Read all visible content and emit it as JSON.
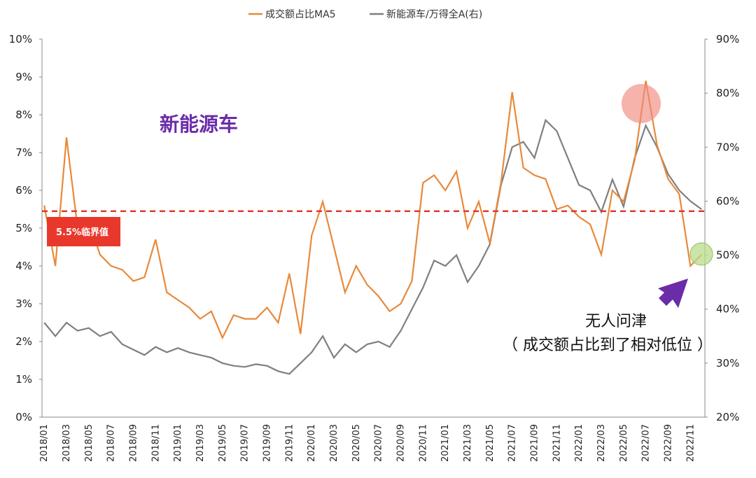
{
  "chart_data": {
    "type": "line",
    "title": "",
    "xlabel": "",
    "ylabel": "",
    "y_left": {
      "lim": [
        0,
        10
      ],
      "ticks": [
        "0%",
        "1%",
        "2%",
        "3%",
        "4%",
        "5%",
        "6%",
        "7%",
        "8%",
        "9%",
        "10%"
      ]
    },
    "y_right": {
      "lim": [
        20,
        90
      ],
      "ticks": [
        "20%",
        "30%",
        "40%",
        "50%",
        "60%",
        "70%",
        "80%",
        "90%"
      ]
    },
    "x_ticks": [
      "2018/01",
      "2018/03",
      "2018/05",
      "2018/07",
      "2018/09",
      "2018/11",
      "2019/01",
      "2019/03",
      "2019/05",
      "2019/07",
      "2019/09",
      "2019/11",
      "2020/01",
      "2020/03",
      "2020/05",
      "2020/07",
      "2020/09",
      "2020/11",
      "2021/01",
      "2021/03",
      "2021/05",
      "2021/07",
      "2021/09",
      "2021/11",
      "2022/01",
      "2022/03",
      "2022/05",
      "2022/07",
      "2022/09",
      "2022/11"
    ],
    "legend_position": "top-center",
    "series": [
      {
        "name": "成交额占比MA5",
        "axis": "left",
        "color": "#e8893a",
        "x": [
          "2018/01",
          "2018/02",
          "2018/03",
          "2018/04",
          "2018/05",
          "2018/06",
          "2018/07",
          "2018/08",
          "2018/09",
          "2018/10",
          "2018/11",
          "2018/12",
          "2019/01",
          "2019/02",
          "2019/03",
          "2019/04",
          "2019/05",
          "2019/06",
          "2019/07",
          "2019/08",
          "2019/09",
          "2019/10",
          "2019/11",
          "2019/12",
          "2020/01",
          "2020/02",
          "2020/03",
          "2020/04",
          "2020/05",
          "2020/06",
          "2020/07",
          "2020/08",
          "2020/09",
          "2020/10",
          "2020/11",
          "2020/12",
          "2021/01",
          "2021/02",
          "2021/03",
          "2021/04",
          "2021/05",
          "2021/06",
          "2021/07",
          "2021/08",
          "2021/09",
          "2021/10",
          "2021/11",
          "2021/12",
          "2022/01",
          "2022/02",
          "2022/03",
          "2022/04",
          "2022/05",
          "2022/06",
          "2022/07",
          "2022/08",
          "2022/09",
          "2022/10",
          "2022/11",
          "2022/12"
        ],
        "values": [
          5.6,
          4.0,
          7.4,
          5.0,
          5.2,
          4.3,
          4.0,
          3.9,
          3.6,
          3.7,
          4.7,
          3.3,
          3.1,
          2.9,
          2.6,
          2.8,
          2.1,
          2.7,
          2.6,
          2.6,
          2.9,
          2.5,
          3.8,
          2.2,
          4.8,
          5.7,
          4.5,
          3.3,
          4.0,
          3.5,
          3.2,
          2.8,
          3.0,
          3.6,
          6.2,
          6.4,
          6.0,
          6.5,
          5.0,
          5.7,
          4.6,
          6.2,
          8.6,
          6.6,
          6.4,
          6.3,
          5.5,
          5.6,
          5.3,
          5.1,
          4.3,
          6.0,
          5.7,
          6.8,
          8.9,
          7.2,
          6.3,
          5.9,
          4.0,
          4.3
        ]
      },
      {
        "name": "新能源车/万得全A(右)",
        "axis": "right",
        "color": "#7f7f7f",
        "x": [
          "2018/01",
          "2018/02",
          "2018/03",
          "2018/04",
          "2018/05",
          "2018/06",
          "2018/07",
          "2018/08",
          "2018/09",
          "2018/10",
          "2018/11",
          "2018/12",
          "2019/01",
          "2019/02",
          "2019/03",
          "2019/04",
          "2019/05",
          "2019/06",
          "2019/07",
          "2019/08",
          "2019/09",
          "2019/10",
          "2019/11",
          "2019/12",
          "2020/01",
          "2020/02",
          "2020/03",
          "2020/04",
          "2020/05",
          "2020/06",
          "2020/07",
          "2020/08",
          "2020/09",
          "2020/10",
          "2020/11",
          "2020/12",
          "2021/01",
          "2021/02",
          "2021/03",
          "2021/04",
          "2021/05",
          "2021/06",
          "2021/07",
          "2021/08",
          "2021/09",
          "2021/10",
          "2021/11",
          "2021/12",
          "2022/01",
          "2022/02",
          "2022/03",
          "2022/04",
          "2022/05",
          "2022/06",
          "2022/07",
          "2022/08",
          "2022/09",
          "2022/10",
          "2022/11",
          "2022/12"
        ],
        "values": [
          37.5,
          35.0,
          37.5,
          36.0,
          36.5,
          35.0,
          35.8,
          33.5,
          32.5,
          31.5,
          33.0,
          32.0,
          32.8,
          32.0,
          31.5,
          31.0,
          30.0,
          29.5,
          29.3,
          29.8,
          29.5,
          28.5,
          28.0,
          30.0,
          32.0,
          35.0,
          31.0,
          33.5,
          32.0,
          33.5,
          34.0,
          33.0,
          36.0,
          40.0,
          44.0,
          49.0,
          48.0,
          50.0,
          45.0,
          48.0,
          52.0,
          63.0,
          70.0,
          71.0,
          68.0,
          75.0,
          73.0,
          68.0,
          63.0,
          62.0,
          58.0,
          64.0,
          59.0,
          68.0,
          74.0,
          70.0,
          65.0,
          62.0,
          60.0,
          58.5
        ]
      }
    ],
    "reference_line": {
      "value": 5.45,
      "axis": "left",
      "color": "#e03a2f",
      "style": "dashed"
    }
  },
  "annotations": {
    "title_callout": "新能源车",
    "threshold_tag": "5.5%临界值",
    "note_line1": "无人问津",
    "note_line2": "（ 成交额占比到了相对低位 ）"
  },
  "colors": {
    "orange": "#e8893a",
    "gray": "#7f7f7f",
    "red_dash": "#e03a2f",
    "tag_bg": "#e8382c",
    "title_purple": "#6a2ca8",
    "arrow_purple": "#6a2ca8",
    "high_circle": "#f08a80",
    "low_circle": "#b9dc8c"
  }
}
